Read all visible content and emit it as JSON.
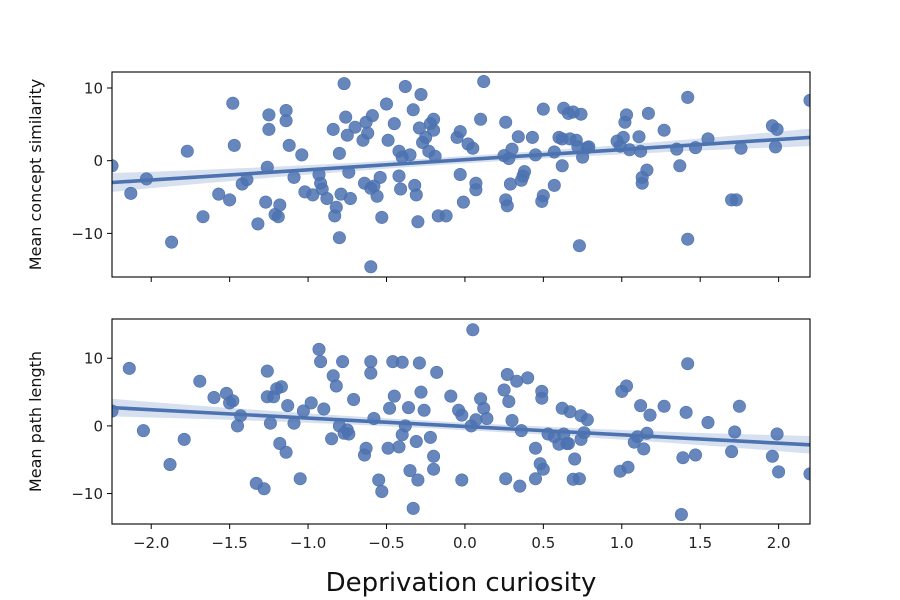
{
  "colors": {
    "points": "#4c72b0",
    "line": "#4c72b0",
    "band": "#c5d3e8"
  },
  "shared_xlabel": "Deprivation curiosity",
  "chart_data": [
    {
      "type": "scatter",
      "title": "",
      "xlabel": "Deprivation curiosity",
      "ylabel": "Mean concept similarity",
      "xlim": [
        -2.25,
        2.2
      ],
      "ylim": [
        -16,
        12.2
      ],
      "xticks": [
        -2.0,
        -1.5,
        -1.0,
        -0.5,
        0.0,
        0.5,
        1.0,
        1.5,
        2.0
      ],
      "xtick_labels": [
        "−2.0",
        "−1.5",
        "−1.0",
        "−0.5",
        "0.0",
        "0.5",
        "1.0",
        "1.5",
        "2.0"
      ],
      "yticks": [
        10,
        0,
        -10
      ],
      "ytick_labels": [
        "10",
        "0",
        "−10"
      ],
      "show_xtick_labels": false,
      "grid": false,
      "regression": {
        "x": [
          -2.25,
          2.2
        ],
        "y": [
          -3.0,
          3.2
        ],
        "ci_start": 1.3,
        "ci_end": 1.2,
        "ci_mid": 0.5
      },
      "points": [
        [
          -2.25,
          -0.7
        ],
        [
          -2.13,
          -4.5
        ],
        [
          -2.03,
          -2.5
        ],
        [
          -1.87,
          -11.2
        ],
        [
          -1.77,
          1.3
        ],
        [
          -1.67,
          -7.7
        ],
        [
          -1.57,
          -4.6
        ],
        [
          -1.5,
          -5.4
        ],
        [
          -1.48,
          7.9
        ],
        [
          -1.47,
          2.1
        ],
        [
          -1.42,
          -3.2
        ],
        [
          -1.39,
          -2.6
        ],
        [
          -1.32,
          -8.7
        ],
        [
          -1.27,
          -5.7
        ],
        [
          -1.26,
          -0.9
        ],
        [
          -1.25,
          6.3
        ],
        [
          -1.25,
          4.3
        ],
        [
          -1.21,
          -7.4
        ],
        [
          -1.19,
          -7.7
        ],
        [
          -1.18,
          -6.1
        ],
        [
          -1.14,
          6.9
        ],
        [
          -1.14,
          5.5
        ],
        [
          -1.12,
          2.1
        ],
        [
          -1.09,
          -2.3
        ],
        [
          -1.04,
          0.8
        ],
        [
          -1.02,
          -4.3
        ],
        [
          -0.97,
          -4.7
        ],
        [
          -0.93,
          -1.9
        ],
        [
          -0.92,
          -3.1
        ],
        [
          -0.91,
          -3.9
        ],
        [
          -0.88,
          -5.2
        ],
        [
          -0.84,
          4.3
        ],
        [
          -0.83,
          -7.6
        ],
        [
          -0.82,
          -6.4
        ],
        [
          -0.8,
          -10.6
        ],
        [
          -0.8,
          1.0
        ],
        [
          -0.79,
          -4.6
        ],
        [
          -0.77,
          10.6
        ],
        [
          -0.76,
          6.0
        ],
        [
          -0.75,
          3.5
        ],
        [
          -0.74,
          -1.6
        ],
        [
          -0.73,
          -5.2
        ],
        [
          -0.7,
          4.6
        ],
        [
          -0.65,
          2.8
        ],
        [
          -0.64,
          -3.1
        ],
        [
          -0.63,
          5.3
        ],
        [
          -0.62,
          3.8
        ],
        [
          -0.6,
          -3.8
        ],
        [
          -0.6,
          -14.6
        ],
        [
          -0.59,
          6.2
        ],
        [
          -0.58,
          -3.5
        ],
        [
          -0.56,
          -4.9
        ],
        [
          -0.54,
          -2.3
        ],
        [
          -0.53,
          -7.8
        ],
        [
          -0.5,
          7.8
        ],
        [
          -0.49,
          2.8
        ],
        [
          -0.45,
          5.1
        ],
        [
          -0.42,
          1.3
        ],
        [
          -0.42,
          -2.1
        ],
        [
          -0.41,
          -3.9
        ],
        [
          -0.4,
          0.5
        ],
        [
          -0.38,
          10.2
        ],
        [
          -0.35,
          0.8
        ],
        [
          -0.33,
          7.0
        ],
        [
          -0.32,
          -3.4
        ],
        [
          -0.31,
          -4.7
        ],
        [
          -0.3,
          -8.4
        ],
        [
          -0.29,
          4.5
        ],
        [
          -0.28,
          9.1
        ],
        [
          -0.27,
          2.5
        ],
        [
          -0.25,
          3.2
        ],
        [
          -0.23,
          1.3
        ],
        [
          -0.22,
          5.1
        ],
        [
          -0.2,
          4.2
        ],
        [
          -0.2,
          5.7
        ],
        [
          -0.19,
          0.6
        ],
        [
          -0.17,
          -7.6
        ],
        [
          -0.12,
          -7.6
        ],
        [
          -0.05,
          3.2
        ],
        [
          -0.03,
          4.0
        ],
        [
          -0.03,
          -1.9
        ],
        [
          -0.01,
          -5.7
        ],
        [
          0.02,
          2.3
        ],
        [
          0.05,
          1.7
        ],
        [
          0.07,
          -3.1
        ],
        [
          0.07,
          -4.0
        ],
        [
          0.1,
          5.7
        ],
        [
          0.12,
          10.9
        ],
        [
          0.25,
          0.7
        ],
        [
          0.26,
          5.3
        ],
        [
          0.26,
          -5.4
        ],
        [
          0.27,
          -6.2
        ],
        [
          0.28,
          0.3
        ],
        [
          0.29,
          -3.2
        ],
        [
          0.3,
          1.6
        ],
        [
          0.34,
          3.3
        ],
        [
          0.36,
          -2.7
        ],
        [
          0.37,
          -2.1
        ],
        [
          0.38,
          -1.5
        ],
        [
          0.43,
          3.2
        ],
        [
          0.45,
          0.8
        ],
        [
          0.49,
          -5.6
        ],
        [
          0.5,
          -4.8
        ],
        [
          0.5,
          7.1
        ],
        [
          0.57,
          1.2
        ],
        [
          0.57,
          -3.4
        ],
        [
          0.6,
          3.2
        ],
        [
          0.62,
          -0.7
        ],
        [
          0.62,
          3.0
        ],
        [
          0.63,
          7.2
        ],
        [
          0.66,
          6.5
        ],
        [
          0.67,
          3.0
        ],
        [
          0.69,
          6.7
        ],
        [
          0.71,
          2.8
        ],
        [
          0.72,
          1.9
        ],
        [
          0.73,
          -11.7
        ],
        [
          0.74,
          6.4
        ],
        [
          0.75,
          0.5
        ],
        [
          0.78,
          1.8
        ],
        [
          0.79,
          1.9
        ],
        [
          0.97,
          2.7
        ],
        [
          0.99,
          2.0
        ],
        [
          1.01,
          3.2
        ],
        [
          1.02,
          5.3
        ],
        [
          1.03,
          6.3
        ],
        [
          1.05,
          1.5
        ],
        [
          1.11,
          3.3
        ],
        [
          1.12,
          1.3
        ],
        [
          1.13,
          -3.1
        ],
        [
          1.13,
          -2.3
        ],
        [
          1.16,
          -1.3
        ],
        [
          1.17,
          6.5
        ],
        [
          1.27,
          4.2
        ],
        [
          1.35,
          1.6
        ],
        [
          1.37,
          -0.7
        ],
        [
          1.42,
          8.7
        ],
        [
          1.42,
          -10.8
        ],
        [
          1.47,
          1.8
        ],
        [
          1.55,
          3.0
        ],
        [
          1.7,
          -5.4
        ],
        [
          1.73,
          -5.4
        ],
        [
          1.76,
          1.7
        ],
        [
          1.96,
          4.8
        ],
        [
          1.98,
          1.9
        ],
        [
          1.99,
          4.3
        ],
        [
          2.2,
          8.3
        ]
      ]
    },
    {
      "type": "scatter",
      "title": "",
      "xlabel": "Deprivation curiosity",
      "ylabel": "Mean path length",
      "xlim": [
        -2.25,
        2.2
      ],
      "ylim": [
        -14.5,
        15.8
      ],
      "xticks": [
        -2.0,
        -1.5,
        -1.0,
        -0.5,
        0.0,
        0.5,
        1.0,
        1.5,
        2.0
      ],
      "xtick_labels": [
        "−2.0",
        "−1.5",
        "−1.0",
        "−0.5",
        "0.0",
        "0.5",
        "1.0",
        "1.5",
        "2.0"
      ],
      "yticks": [
        10,
        0,
        -10
      ],
      "ytick_labels": [
        "10",
        "0",
        "−10"
      ],
      "show_xtick_labels": true,
      "grid": false,
      "regression": {
        "x": [
          -2.25,
          2.2
        ],
        "y": [
          2.7,
          -2.8
        ],
        "ci_start": 1.3,
        "ci_end": 1.3,
        "ci_mid": 0.55
      },
      "points": [
        [
          -2.25,
          2.2
        ],
        [
          -2.14,
          8.5
        ],
        [
          -2.05,
          -0.7
        ],
        [
          -1.88,
          -5.7
        ],
        [
          -1.79,
          -2.0
        ],
        [
          -1.69,
          6.6
        ],
        [
          -1.6,
          4.2
        ],
        [
          -1.52,
          4.8
        ],
        [
          -1.5,
          3.4
        ],
        [
          -1.48,
          3.7
        ],
        [
          -1.45,
          0.0
        ],
        [
          -1.43,
          1.5
        ],
        [
          -1.33,
          -8.5
        ],
        [
          -1.28,
          -9.3
        ],
        [
          -1.26,
          4.3
        ],
        [
          -1.26,
          8.1
        ],
        [
          -1.24,
          0.4
        ],
        [
          -1.22,
          4.3
        ],
        [
          -1.2,
          5.5
        ],
        [
          -1.18,
          -2.6
        ],
        [
          -1.17,
          5.8
        ],
        [
          -1.14,
          -3.9
        ],
        [
          -1.13,
          3.0
        ],
        [
          -1.09,
          0.4
        ],
        [
          -1.05,
          -7.8
        ],
        [
          -1.03,
          2.2
        ],
        [
          -0.98,
          3.4
        ],
        [
          -0.93,
          11.3
        ],
        [
          -0.92,
          9.5
        ],
        [
          -0.9,
          2.5
        ],
        [
          -0.85,
          -1.9
        ],
        [
          -0.84,
          7.4
        ],
        [
          -0.82,
          5.9
        ],
        [
          -0.8,
          0.0
        ],
        [
          -0.78,
          9.5
        ],
        [
          -0.77,
          -1.1
        ],
        [
          -0.75,
          -0.6
        ],
        [
          -0.74,
          -1.2
        ],
        [
          -0.71,
          3.9
        ],
        [
          -0.64,
          -4.3
        ],
        [
          -0.63,
          -3.3
        ],
        [
          -0.6,
          9.5
        ],
        [
          -0.6,
          7.8
        ],
        [
          -0.58,
          1.1
        ],
        [
          -0.55,
          -8.0
        ],
        [
          -0.53,
          -9.7
        ],
        [
          -0.49,
          -3.3
        ],
        [
          -0.48,
          2.6
        ],
        [
          -0.46,
          9.5
        ],
        [
          -0.45,
          4.4
        ],
        [
          -0.42,
          -3.1
        ],
        [
          -0.4,
          9.4
        ],
        [
          -0.4,
          -1.3
        ],
        [
          -0.38,
          0.0
        ],
        [
          -0.36,
          2.7
        ],
        [
          -0.35,
          -6.6
        ],
        [
          -0.33,
          -12.2
        ],
        [
          -0.31,
          -2.3
        ],
        [
          -0.3,
          -8.0
        ],
        [
          -0.29,
          9.3
        ],
        [
          -0.28,
          5.0
        ],
        [
          -0.26,
          2.3
        ],
        [
          -0.22,
          -1.7
        ],
        [
          -0.2,
          -6.4
        ],
        [
          -0.2,
          -4.5
        ],
        [
          -0.18,
          7.9
        ],
        [
          -0.09,
          4.4
        ],
        [
          -0.04,
          2.3
        ],
        [
          -0.02,
          1.6
        ],
        [
          -0.02,
          -8.0
        ],
        [
          0.04,
          0.0
        ],
        [
          0.05,
          14.2
        ],
        [
          0.07,
          0.9
        ],
        [
          0.1,
          4.0
        ],
        [
          0.12,
          2.6
        ],
        [
          0.14,
          1.1
        ],
        [
          0.25,
          5.3
        ],
        [
          0.26,
          -7.8
        ],
        [
          0.27,
          7.6
        ],
        [
          0.28,
          3.6
        ],
        [
          0.3,
          0.8
        ],
        [
          0.33,
          6.6
        ],
        [
          0.35,
          -8.9
        ],
        [
          0.36,
          -0.7
        ],
        [
          0.4,
          7.1
        ],
        [
          0.45,
          -7.8
        ],
        [
          0.45,
          -3.3
        ],
        [
          0.48,
          -5.6
        ],
        [
          0.49,
          5.1
        ],
        [
          0.49,
          4.1
        ],
        [
          0.5,
          -6.4
        ],
        [
          0.53,
          -1.2
        ],
        [
          0.57,
          -1.6
        ],
        [
          0.6,
          -2.7
        ],
        [
          0.62,
          2.6
        ],
        [
          0.63,
          -1.2
        ],
        [
          0.65,
          -2.6
        ],
        [
          0.66,
          -2.6
        ],
        [
          0.67,
          2.1
        ],
        [
          0.69,
          -7.9
        ],
        [
          0.7,
          -4.9
        ],
        [
          0.73,
          -7.8
        ],
        [
          0.74,
          1.5
        ],
        [
          0.74,
          -2.0
        ],
        [
          0.76,
          -1.0
        ],
        [
          0.78,
          0.9
        ],
        [
          0.99,
          -6.7
        ],
        [
          1.0,
          5.1
        ],
        [
          1.03,
          5.9
        ],
        [
          1.04,
          -6.1
        ],
        [
          1.08,
          -2.4
        ],
        [
          1.1,
          -1.6
        ],
        [
          1.12,
          3.0
        ],
        [
          1.14,
          -3.4
        ],
        [
          1.16,
          -1.1
        ],
        [
          1.18,
          1.6
        ],
        [
          1.27,
          2.9
        ],
        [
          1.38,
          -13.1
        ],
        [
          1.39,
          -4.7
        ],
        [
          1.41,
          2.0
        ],
        [
          1.42,
          9.2
        ],
        [
          1.47,
          -4.3
        ],
        [
          1.55,
          0.5
        ],
        [
          1.7,
          -3.8
        ],
        [
          1.72,
          -0.9
        ],
        [
          1.75,
          2.9
        ],
        [
          1.96,
          -4.5
        ],
        [
          1.99,
          -1.2
        ],
        [
          2.0,
          -6.8
        ],
        [
          2.2,
          -7.1
        ]
      ]
    }
  ]
}
